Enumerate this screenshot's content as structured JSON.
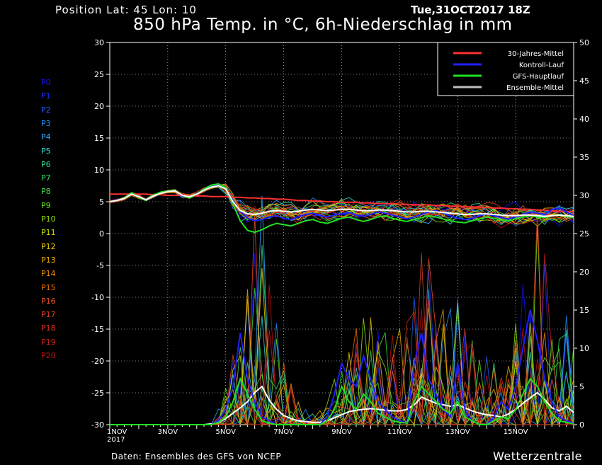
{
  "header": {
    "position": "Position   Lat: 45 Lon: 10",
    "datetime": "Tue,31OCT2017 18Z",
    "title": "850 hPa Temp. in °C, 6h-Niederschlag in mm"
  },
  "footer": {
    "source": "Daten: Ensembles des GFS von NCEP",
    "brand": "Wetterzentrale"
  },
  "members": [
    {
      "label": "P0",
      "color": "#1010ff"
    },
    {
      "label": "P1",
      "color": "#1830ff"
    },
    {
      "label": "P2",
      "color": "#2060ff"
    },
    {
      "label": "P3",
      "color": "#2090ff"
    },
    {
      "label": "P4",
      "color": "#30b0ff"
    },
    {
      "label": "P5",
      "color": "#30e0e0"
    },
    {
      "label": "P6",
      "color": "#30e090"
    },
    {
      "label": "P7",
      "color": "#30e060"
    },
    {
      "label": "P8",
      "color": "#40e040"
    },
    {
      "label": "P9",
      "color": "#60e020"
    },
    {
      "label": "P10",
      "color": "#90e010"
    },
    {
      "label": "P11",
      "color": "#d0e000"
    },
    {
      "label": "P12",
      "color": "#f0d000"
    },
    {
      "label": "P13",
      "color": "#f0b000"
    },
    {
      "label": "P14",
      "color": "#f09000"
    },
    {
      "label": "P15",
      "color": "#f07000"
    },
    {
      "label": "P16",
      "color": "#f05020"
    },
    {
      "label": "P17",
      "color": "#e04020"
    },
    {
      "label": "P18",
      "color": "#e03020"
    },
    {
      "label": "P19",
      "color": "#d02020"
    },
    {
      "label": "P20",
      "color": "#c01010"
    }
  ],
  "chart_data": {
    "type": "line",
    "x_start": "1NOV2017 00Z",
    "x_step_hours": 6,
    "x_tick_labels": [
      "1NOV",
      "3NOV",
      "5NOV",
      "7NOV",
      "9NOV",
      "11NOV",
      "13NOV",
      "15NOV"
    ],
    "x_year_label": "2017",
    "left_axis": {
      "range": [
        -30,
        30
      ],
      "ticks": [
        30,
        25,
        20,
        15,
        10,
        5,
        0,
        -5,
        -10,
        -15,
        -20,
        -25,
        -30
      ]
    },
    "right_axis": {
      "range": [
        0,
        50
      ],
      "ticks": [
        50,
        45,
        40,
        35,
        30,
        25,
        20,
        15,
        10,
        5,
        0
      ]
    },
    "grid": true,
    "legend_position": "top-right",
    "legend": [
      {
        "name": "30-Jahres-Mittel",
        "color": "#ff3030"
      },
      {
        "name": "Kontroll-Lauf",
        "color": "#2020ff"
      },
      {
        "name": "GFS-Hauptlauf",
        "color": "#20e020"
      },
      {
        "name": "Ensemble-Mittel",
        "color": "#c0c0c0"
      }
    ],
    "temperature_series": [
      {
        "name": "30-Jahres-Mittel",
        "axis": "left",
        "values": [
          6.2,
          6.2,
          6.2,
          6.2,
          6.2,
          6.2,
          6.1,
          6.1,
          6.0,
          6.0,
          6.0,
          5.9,
          5.9,
          5.9,
          5.8,
          5.8,
          5.8,
          5.7,
          5.7,
          5.6,
          5.6,
          5.5,
          5.5,
          5.4,
          5.4,
          5.3,
          5.2,
          5.2,
          5.1,
          5.1,
          5.0,
          5.0,
          4.9,
          4.9,
          4.9,
          4.8,
          4.8,
          4.7,
          4.7,
          4.7,
          4.6,
          4.6,
          4.5,
          4.5,
          4.5,
          4.4,
          4.4,
          4.3,
          4.3,
          4.2,
          4.2,
          4.1,
          4.1,
          4.0,
          4.0,
          3.9,
          3.9,
          3.8,
          3.8,
          3.7,
          3.7,
          3.6,
          3.5,
          3.5,
          3.4
        ]
      },
      {
        "name": "Kontroll-Lauf",
        "axis": "left",
        "values": [
          5.0,
          5.2,
          5.5,
          6.3,
          5.8,
          5.3,
          6.0,
          6.4,
          6.6,
          6.7,
          5.9,
          5.7,
          6.3,
          6.9,
          7.4,
          7.6,
          7.0,
          5.2,
          3.5,
          2.4,
          2.0,
          2.2,
          2.6,
          2.8,
          2.4,
          2.2,
          2.6,
          3.0,
          3.2,
          2.8,
          2.6,
          2.9,
          3.1,
          3.3,
          2.9,
          2.7,
          3.0,
          3.4,
          3.2,
          2.9,
          2.6,
          2.3,
          2.6,
          3.0,
          3.4,
          3.6,
          3.2,
          2.8,
          2.4,
          2.2,
          2.4,
          2.8,
          3.1,
          2.8,
          2.5,
          2.3,
          2.6,
          3.0,
          3.4,
          3.2,
          3.0,
          3.8,
          4.0,
          3.4,
          2.8
        ]
      },
      {
        "name": "GFS-Hauptlauf",
        "axis": "left",
        "values": [
          5.0,
          5.2,
          5.6,
          6.4,
          5.7,
          5.2,
          6.0,
          6.5,
          6.7,
          6.8,
          6.0,
          5.6,
          6.2,
          7.0,
          7.6,
          7.8,
          7.2,
          4.6,
          2.0,
          0.5,
          0.2,
          0.6,
          1.2,
          1.6,
          1.4,
          1.2,
          1.6,
          2.0,
          2.2,
          1.8,
          1.6,
          2.0,
          2.4,
          2.6,
          2.2,
          1.9,
          2.2,
          2.6,
          2.8,
          2.4,
          2.1,
          1.9,
          2.2,
          2.5,
          2.8,
          2.6,
          2.3,
          2.0,
          1.8,
          1.7,
          2.0,
          2.3,
          2.6,
          2.4,
          2.1,
          2.0,
          2.3,
          2.6,
          2.8,
          2.6,
          2.5,
          2.8,
          3.0,
          2.7,
          2.5
        ]
      },
      {
        "name": "Ensemble-Mittel",
        "axis": "left",
        "values": [
          5.0,
          5.2,
          5.5,
          6.2,
          5.8,
          5.3,
          5.9,
          6.3,
          6.6,
          6.7,
          6.0,
          5.8,
          6.2,
          6.8,
          7.3,
          7.5,
          7.0,
          5.0,
          3.6,
          3.1,
          3.0,
          3.2,
          3.5,
          3.6,
          3.5,
          3.4,
          3.5,
          3.7,
          3.8,
          3.7,
          3.6,
          3.7,
          3.8,
          3.8,
          3.7,
          3.6,
          3.6,
          3.7,
          3.7,
          3.6,
          3.5,
          3.4,
          3.4,
          3.5,
          3.5,
          3.4,
          3.3,
          3.2,
          3.1,
          3.0,
          3.0,
          3.1,
          3.1,
          3.0,
          2.9,
          2.8,
          2.8,
          2.9,
          2.9,
          2.8,
          2.7,
          2.8,
          2.9,
          2.8,
          2.7
        ]
      }
    ],
    "precipitation_series": [
      {
        "name": "Ensemble-Mittel",
        "axis": "right",
        "values": [
          0,
          0,
          0,
          0,
          0,
          0,
          0,
          0,
          0,
          0,
          0,
          0,
          0,
          0,
          0.1,
          0.3,
          0.8,
          1.5,
          2.2,
          3.0,
          4.2,
          5.0,
          3.2,
          2.0,
          1.2,
          0.8,
          0.5,
          0.4,
          0.3,
          0.3,
          0.5,
          0.9,
          1.3,
          1.7,
          1.9,
          2.0,
          2.1,
          2.0,
          1.9,
          1.8,
          1.8,
          2.0,
          2.6,
          3.6,
          3.2,
          2.8,
          2.6,
          2.4,
          2.6,
          2.2,
          1.8,
          1.5,
          1.3,
          1.2,
          1.0,
          1.4,
          2.0,
          2.8,
          3.5,
          4.2,
          3.3,
          2.2,
          1.8,
          2.4,
          1.6
        ]
      },
      {
        "name": "Kontroll-Lauf",
        "axis": "right",
        "values": [
          0,
          0,
          0,
          0,
          0,
          0,
          0,
          0,
          0,
          0,
          0,
          0,
          0,
          0,
          0,
          0.5,
          2,
          5,
          12,
          6,
          3,
          1,
          0.5,
          0,
          0,
          0,
          0,
          0,
          0,
          0,
          1,
          4,
          8,
          6,
          5,
          9,
          6,
          3,
          2,
          1,
          0.5,
          0.2,
          8,
          12,
          6,
          4,
          2,
          1,
          8,
          2,
          0.5,
          0,
          0,
          1,
          3,
          2,
          5,
          10,
          15,
          11,
          6,
          3,
          1,
          0.5,
          0.2
        ]
      },
      {
        "name": "GFS-Hauptlauf",
        "axis": "right",
        "values": [
          0,
          0,
          0,
          0,
          0,
          0,
          0,
          0,
          0,
          0,
          0,
          0,
          0,
          0,
          0,
          0.3,
          1,
          3,
          6,
          4,
          2,
          0.5,
          0.2,
          0,
          0,
          0,
          0,
          0,
          0,
          0,
          0.5,
          2,
          5,
          3,
          2,
          4,
          3,
          1.5,
          1,
          0.5,
          0.3,
          0.2,
          3,
          5,
          4,
          3,
          2,
          1.5,
          3,
          1,
          0.5,
          0,
          0,
          0.5,
          1,
          0.8,
          2,
          4,
          6,
          5,
          3,
          1.5,
          0.5,
          0.3,
          0.1
        ]
      }
    ]
  }
}
